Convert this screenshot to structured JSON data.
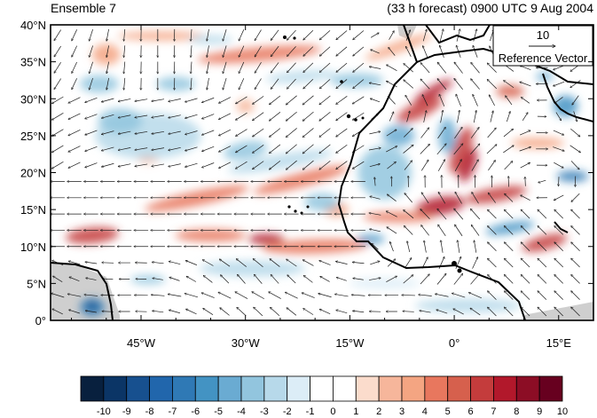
{
  "header": {
    "left_title": "Ensemble 7",
    "right_title": "(33 h forecast) 0900 UTC 9 Aug 2004"
  },
  "reference_vector": {
    "value": "10",
    "label": "Reference Vector"
  },
  "axes": {
    "lat_labels": [
      "0°",
      "5°N",
      "10°N",
      "15°N",
      "20°N",
      "25°N",
      "30°N",
      "35°N",
      "40°N"
    ],
    "lat_values": [
      0,
      5,
      10,
      15,
      20,
      25,
      30,
      35,
      40
    ],
    "lon_labels": [
      "45°W",
      "30°W",
      "15°W",
      "0°",
      "15°E"
    ],
    "lon_values": [
      -45,
      -30,
      -15,
      0,
      15
    ],
    "lon_range": [
      -58,
      20
    ],
    "lat_range": [
      0,
      40
    ]
  },
  "colorbar": {
    "labels": [
      "-10",
      "-9",
      "-8",
      "-7",
      "-6",
      "-5",
      "-4",
      "-3",
      "-2",
      "-1",
      "0",
      "1",
      "2",
      "3",
      "4",
      "5",
      "6",
      "7",
      "8",
      "9",
      "10"
    ],
    "colors": [
      "#08203e",
      "#0b3566",
      "#17508f",
      "#2166ac",
      "#2f79b5",
      "#4393c3",
      "#6aabd2",
      "#92c5de",
      "#b7d9ea",
      "#dcedf7",
      "#ffffff",
      "#ffffff",
      "#fbdccc",
      "#f6b69b",
      "#f4a582",
      "#e8775e",
      "#d6604d",
      "#c43c3c",
      "#b2182b",
      "#8c0d25",
      "#67001f"
    ]
  },
  "colors": {
    "land_mask": "#cfcfcf",
    "coast": "#000000",
    "vector": "#1a1a1a"
  }
}
